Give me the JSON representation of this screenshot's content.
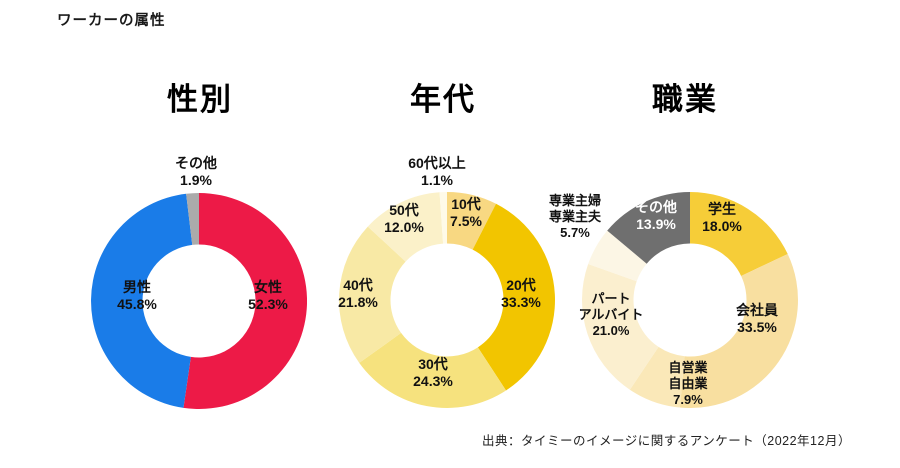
{
  "page": {
    "title": "ワーカーの属性",
    "source": "出典：タイミーのイメージに関するアンケート（2022年12月）"
  },
  "chart_data": [
    {
      "type": "pie",
      "title": "性別",
      "donut": true,
      "start_angle_deg": -90,
      "direction": "clockwise",
      "slices": [
        {
          "label": "女性",
          "pct": 52.3,
          "display": "52.3%",
          "color": "#ED1A47"
        },
        {
          "label": "男性",
          "pct": 45.8,
          "display": "45.8%",
          "color": "#1A7CE8"
        },
        {
          "label": "その他",
          "pct": 1.9,
          "display": "1.9%",
          "color": "#ABABAB"
        }
      ]
    },
    {
      "type": "pie",
      "title": "年代",
      "donut": true,
      "start_angle_deg": -90,
      "direction": "clockwise",
      "slices": [
        {
          "label": "10代",
          "pct": 7.5,
          "display": "7.5%",
          "color": "#F8D882"
        },
        {
          "label": "20代",
          "pct": 33.3,
          "display": "33.3%",
          "color": "#F2C500"
        },
        {
          "label": "30代",
          "pct": 24.3,
          "display": "24.3%",
          "color": "#F6E27E"
        },
        {
          "label": "40代",
          "pct": 21.8,
          "display": "21.8%",
          "color": "#F8E9A5"
        },
        {
          "label": "50代",
          "pct": 12.0,
          "display": "12.0%",
          "color": "#FBF1C9"
        },
        {
          "label": "60代以上",
          "pct": 1.1,
          "display": "1.1%",
          "color": "#FEFAE8"
        }
      ]
    },
    {
      "type": "pie",
      "title": "職業",
      "donut": true,
      "start_angle_deg": -90,
      "direction": "clockwise",
      "slices": [
        {
          "label": "学生",
          "pct": 18.0,
          "display": "18.0%",
          "color": "#F6CD38"
        },
        {
          "label": "会社員",
          "pct": 33.5,
          "display": "33.5%",
          "color": "#F8DFA0"
        },
        {
          "label": "自営業",
          "label2": "自由業",
          "pct": 7.9,
          "display": "7.9%",
          "color": "#FAE8B8"
        },
        {
          "label": "パート",
          "label2": "アルバイト",
          "pct": 21.0,
          "display": "21.0%",
          "color": "#FBEFCF"
        },
        {
          "label": "専業主婦",
          "label2": "専業主夫",
          "pct": 5.7,
          "display": "5.7%",
          "color": "#FCF6E5"
        },
        {
          "label": "その他",
          "pct": 13.9,
          "display": "13.9%",
          "color": "#6F6F6F"
        }
      ]
    }
  ]
}
